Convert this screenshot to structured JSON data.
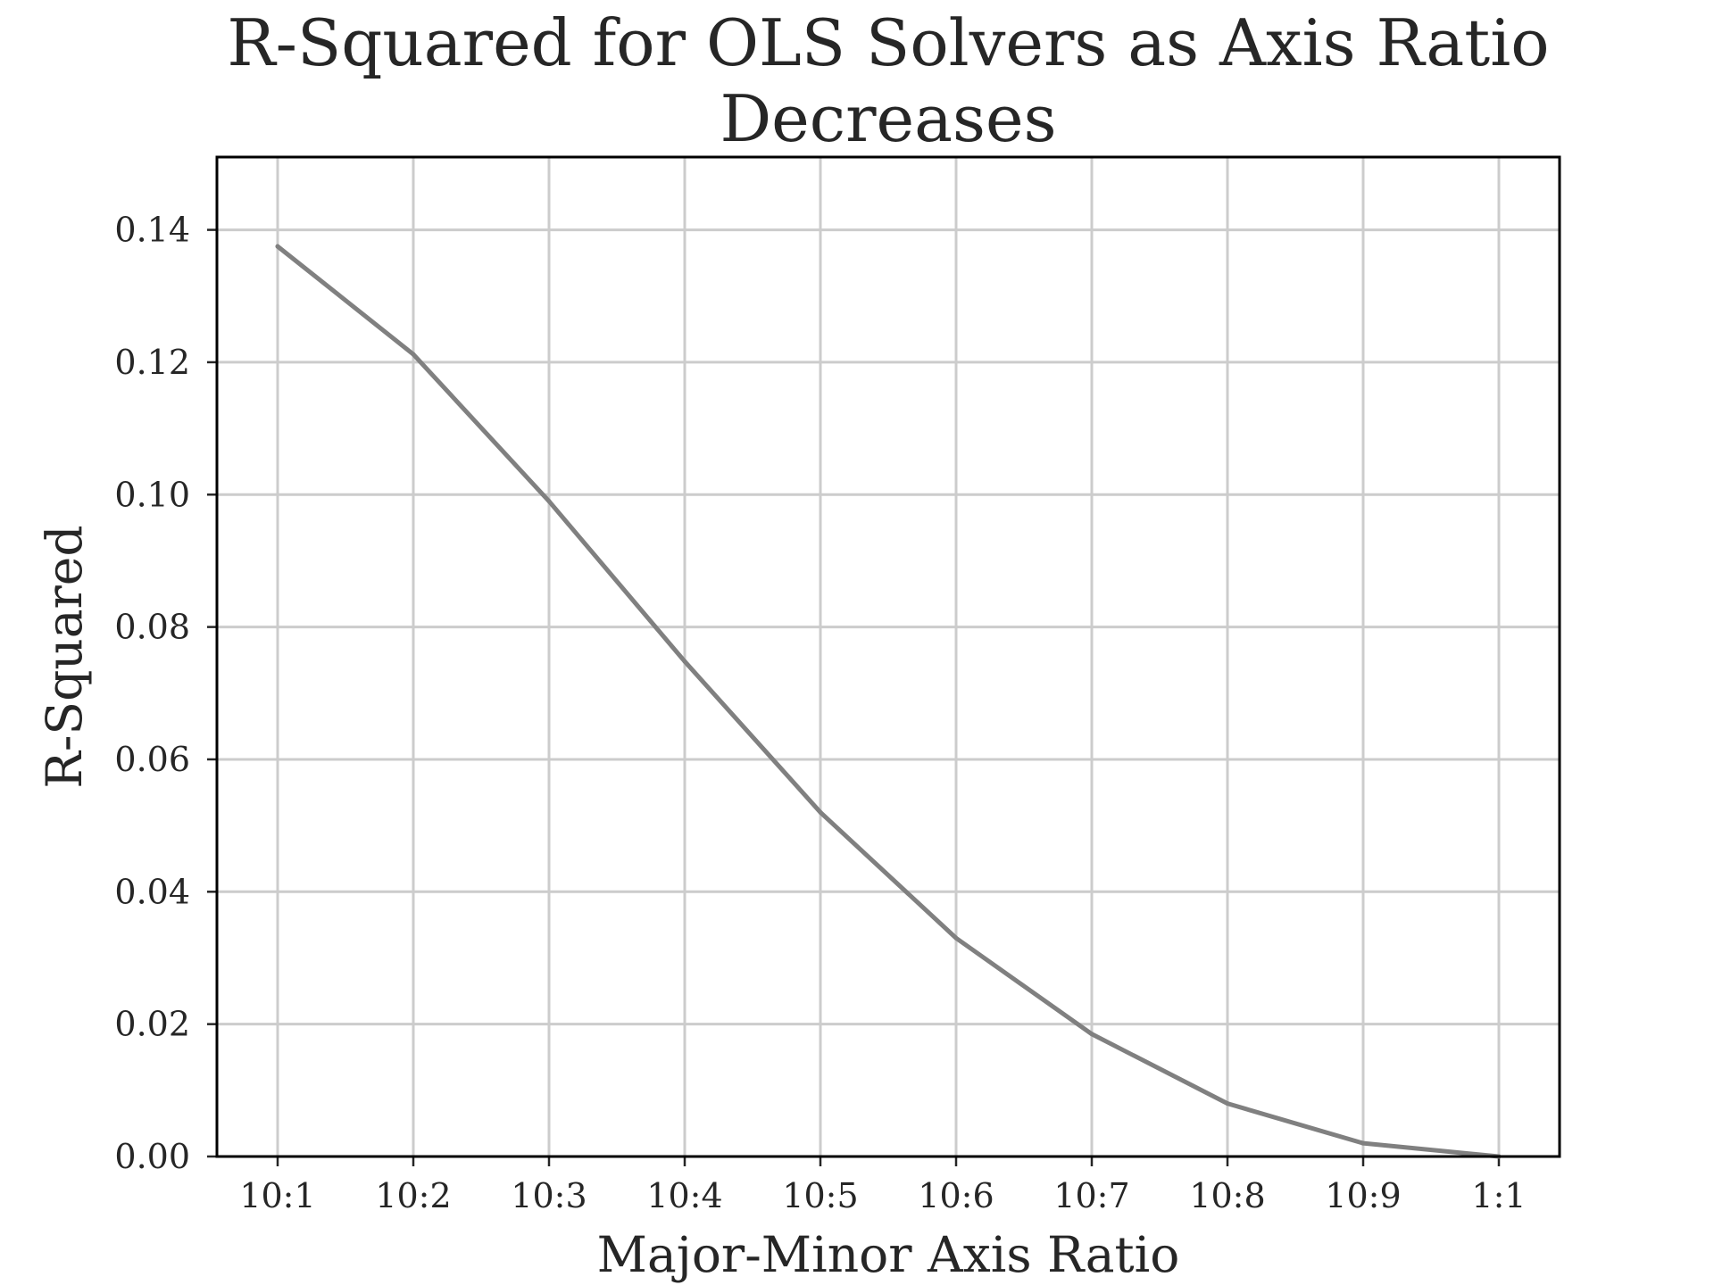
{
  "chart_data": {
    "type": "line",
    "title": "R-Squared for OLS Solvers as Axis Ratio Decreases",
    "title_lines": [
      "R-Squared for OLS Solvers as Axis Ratio",
      "Decreases"
    ],
    "xlabel": "Major-Minor Axis Ratio",
    "ylabel": "R-Squared",
    "categories": [
      "10:1",
      "10:2",
      "10:3",
      "10:4",
      "10:5",
      "10:6",
      "10:7",
      "10:8",
      "10:9",
      "1:1"
    ],
    "series": [
      {
        "values": [
          0.1375,
          0.1212,
          0.099,
          0.0748,
          0.052,
          0.033,
          0.0185,
          0.008,
          0.002,
          0.0
        ],
        "color": "#808080"
      }
    ],
    "ylim": [
      0,
      0.151
    ],
    "yticks": [
      0.0,
      0.02,
      0.04,
      0.06,
      0.08,
      0.1,
      0.12,
      0.14
    ],
    "ytick_labels": [
      "0.00",
      "0.02",
      "0.04",
      "0.06",
      "0.08",
      "0.10",
      "0.12",
      "0.14"
    ],
    "grid": true,
    "legend": "none"
  }
}
